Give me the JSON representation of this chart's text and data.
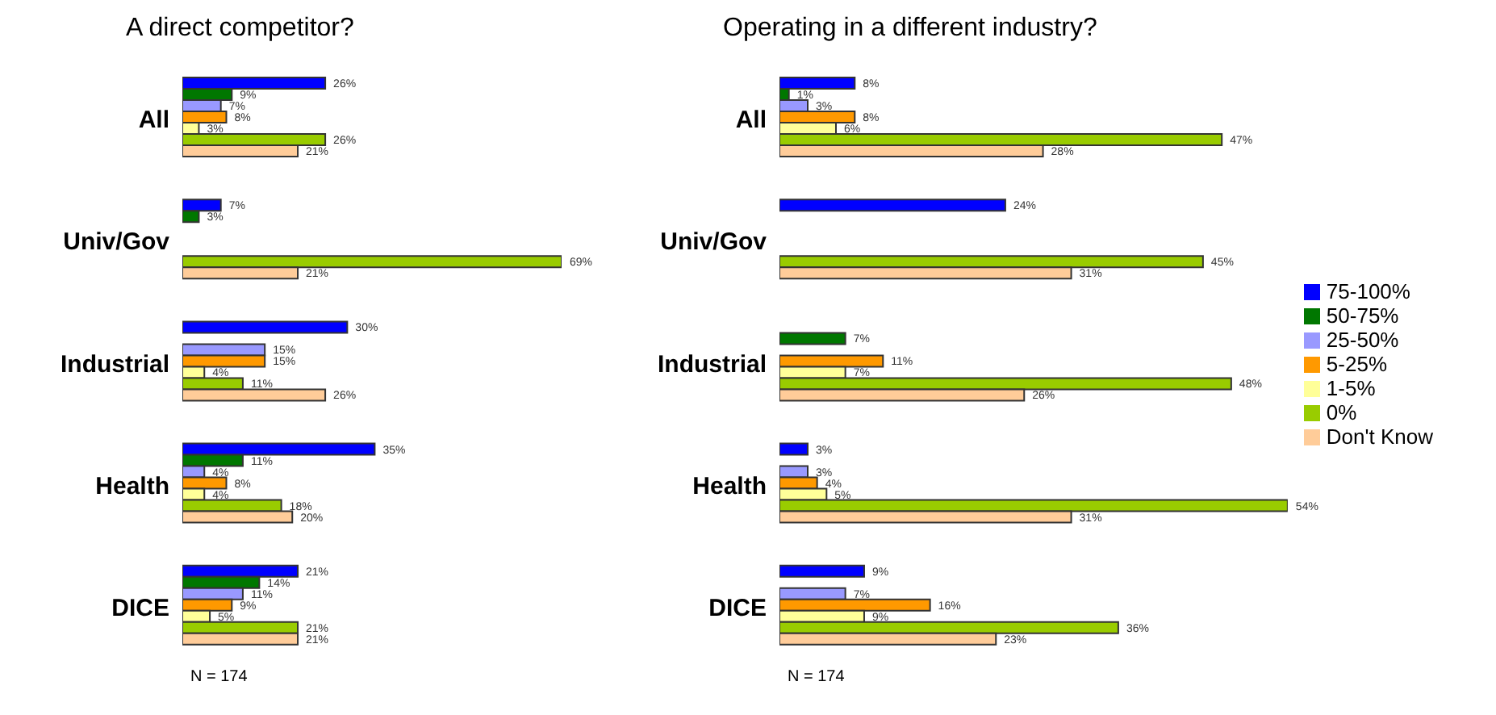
{
  "chart_data": [
    {
      "type": "bar",
      "orientation": "horizontal",
      "title": "A direct competitor?",
      "categories": [
        "All",
        "Univ/Gov",
        "Industrial",
        "Health",
        "DICE"
      ],
      "tick_labels": "y",
      "data_labels": true,
      "annotations": [
        "N = 174"
      ],
      "series": [
        {
          "color": "#0000ff",
          "values": [
            26,
            7,
            30,
            35,
            21
          ],
          "value_labels": [
            "26%",
            "7%",
            "30%",
            "35%",
            "21%"
          ]
        },
        {
          "color": "#007700",
          "values": [
            9,
            3,
            null,
            11,
            14
          ],
          "value_labels": [
            "9%",
            "3%",
            null,
            "11%",
            "14%"
          ]
        },
        {
          "color": "#9999ff",
          "values": [
            7,
            null,
            15,
            4,
            11
          ],
          "value_labels": [
            "7%",
            null,
            "15%",
            "4%",
            "11%"
          ]
        },
        {
          "color": "#ff9900",
          "values": [
            8,
            null,
            15,
            8,
            9
          ],
          "value_labels": [
            "8%",
            null,
            "15%",
            "8%",
            "9%"
          ]
        },
        {
          "color": "#ffff99",
          "values": [
            3,
            null,
            4,
            4,
            5
          ],
          "value_labels": [
            "3%",
            null,
            "4%",
            "4%",
            "5%"
          ]
        },
        {
          "color": "#99cc00",
          "values": [
            26,
            69,
            11,
            18,
            21
          ],
          "value_labels": [
            "26%",
            "69%",
            "11%",
            "18%",
            "21%"
          ]
        },
        {
          "color": "#ffcc99",
          "values": [
            21,
            21,
            26,
            20,
            21
          ],
          "value_labels": [
            "21%",
            "21%",
            "26%",
            "20%",
            "21%"
          ]
        }
      ]
    },
    {
      "type": "bar",
      "orientation": "horizontal",
      "title": "Operating in a different industry?",
      "categories": [
        "All",
        "Univ/Gov",
        "Industrial",
        "Health",
        "DICE"
      ],
      "tick_labels": "y",
      "data_labels": true,
      "legend": "right",
      "annotations": [
        "N = 174"
      ],
      "series": [
        {
          "name": "75-100%",
          "color": "#0000ff",
          "values": [
            8,
            24,
            null,
            3,
            9
          ],
          "value_labels": [
            "8%",
            "24%",
            null,
            "3%",
            "9%"
          ]
        },
        {
          "name": "50-75%",
          "color": "#007700",
          "values": [
            1,
            null,
            7,
            null,
            null
          ],
          "value_labels": [
            "1%",
            null,
            "7%",
            null,
            null
          ]
        },
        {
          "name": "25-50%",
          "color": "#9999ff",
          "values": [
            3,
            null,
            null,
            3,
            7
          ],
          "value_labels": [
            "3%",
            null,
            null,
            "3%",
            "7%"
          ]
        },
        {
          "name": "5-25%",
          "color": "#ff9900",
          "values": [
            8,
            null,
            11,
            4,
            16
          ],
          "value_labels": [
            "8%",
            null,
            "11%",
            "4%",
            "16%"
          ]
        },
        {
          "name": "1-5%",
          "color": "#ffff99",
          "values": [
            6,
            null,
            7,
            5,
            9
          ],
          "value_labels": [
            "6%",
            null,
            "7%",
            "5%",
            "9%"
          ]
        },
        {
          "name": "0%",
          "color": "#99cc00",
          "values": [
            47,
            45,
            48,
            54,
            36
          ],
          "value_labels": [
            "47%",
            "45%",
            "48%",
            "54%",
            "36%"
          ]
        },
        {
          "name": "Don't Know",
          "color": "#ffcc99",
          "values": [
            28,
            31,
            26,
            31,
            23
          ],
          "value_labels": [
            "28%",
            "31%",
            "26%",
            "31%",
            "23%"
          ]
        }
      ]
    }
  ]
}
